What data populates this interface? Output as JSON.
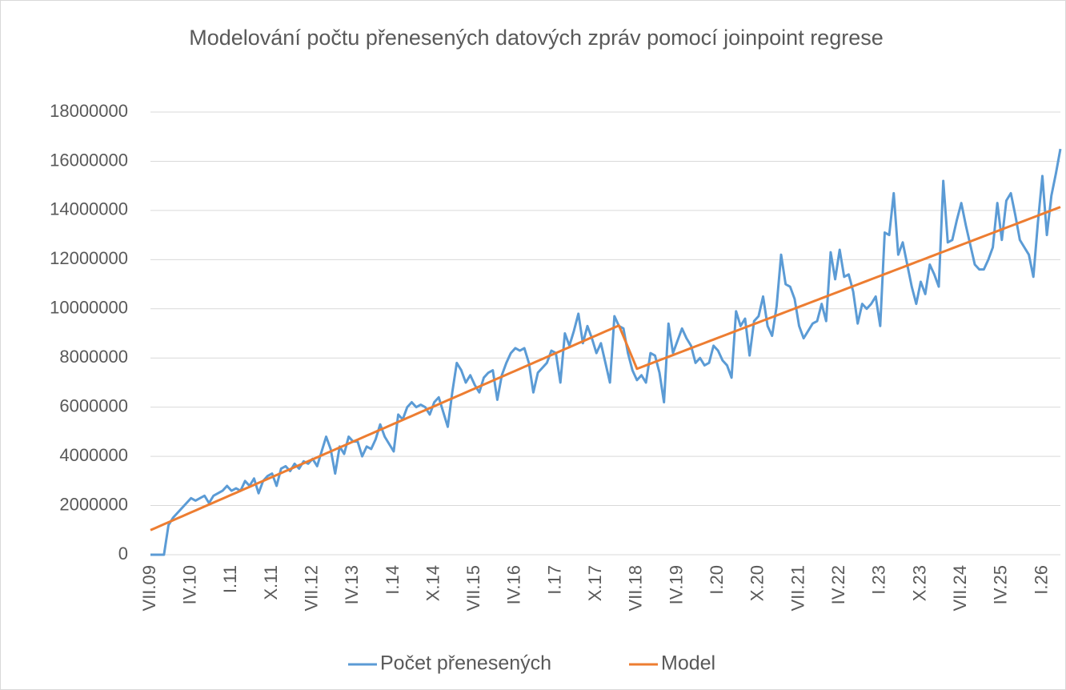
{
  "chart_data": {
    "type": "line",
    "title": "Modelování počtu přenesených datových zpráv pomocí joinpoint regrese",
    "categories": [
      "VII.09",
      null,
      null,
      null,
      null,
      null,
      null,
      null,
      null,
      "IV.10",
      null,
      null,
      null,
      null,
      null,
      null,
      null,
      null,
      "I.11",
      null,
      null,
      null,
      null,
      null,
      null,
      null,
      null,
      "X.11",
      null,
      null,
      null,
      null,
      null,
      null,
      null,
      null,
      "VII.12",
      null,
      null,
      null,
      null,
      null,
      null,
      null,
      null,
      "IV.13",
      null,
      null,
      null,
      null,
      null,
      null,
      null,
      null,
      "I.14",
      null,
      null,
      null,
      null,
      null,
      null,
      null,
      null,
      "X.14",
      null,
      null,
      null,
      null,
      null,
      null,
      null,
      null,
      "VII.15",
      null,
      null,
      null,
      null,
      null,
      null,
      null,
      null,
      "IV.16",
      null,
      null,
      null,
      null,
      null,
      null,
      null,
      null,
      "I.17",
      null,
      null,
      null,
      null,
      null,
      null,
      null,
      null,
      "X.17",
      null,
      null,
      null,
      null,
      null,
      null,
      null,
      null,
      "VII.18",
      null,
      null,
      null,
      null,
      null,
      null,
      null,
      null,
      "IV.19",
      null,
      null,
      null,
      null,
      null,
      null,
      null,
      null,
      "I.20",
      null,
      null,
      null,
      null,
      null,
      null,
      null,
      null,
      "X.20",
      null,
      null,
      null,
      null,
      null,
      null,
      null,
      null,
      "VII.21",
      null,
      null,
      null,
      null,
      null,
      null,
      null,
      null,
      "IV.22",
      null,
      null,
      null,
      null,
      null,
      null,
      null,
      null,
      "I.23",
      null,
      null,
      null,
      null,
      null,
      null,
      null,
      null,
      "X.23",
      null,
      null,
      null,
      null,
      null,
      null,
      null,
      null,
      "VII.24",
      null,
      null,
      null,
      null,
      null,
      null,
      null,
      null,
      "IV.25",
      null,
      null,
      null,
      null,
      null,
      null,
      null,
      null,
      "I.26",
      null,
      null,
      null,
      null
    ],
    "series": [
      {
        "name": "Počet přenesených",
        "color": "#5b9bd5",
        "values": [
          0,
          0,
          0,
          0,
          1200000,
          1500000,
          1700000,
          1900000,
          2100000,
          2300000,
          2200000,
          2300000,
          2400000,
          2100000,
          2400000,
          2500000,
          2600000,
          2800000,
          2600000,
          2700000,
          2600000,
          3000000,
          2800000,
          3100000,
          2500000,
          3000000,
          3200000,
          3300000,
          2800000,
          3500000,
          3600000,
          3400000,
          3700000,
          3500000,
          3800000,
          3700000,
          3900000,
          3600000,
          4200000,
          4800000,
          4300000,
          3300000,
          4400000,
          4100000,
          4800000,
          4600000,
          4600000,
          4000000,
          4400000,
          4300000,
          4700000,
          5300000,
          4800000,
          4500000,
          4200000,
          5700000,
          5500000,
          6000000,
          6200000,
          6000000,
          6100000,
          6000000,
          5700000,
          6200000,
          6400000,
          5800000,
          5200000,
          6600000,
          7800000,
          7500000,
          7000000,
          7300000,
          6900000,
          6600000,
          7200000,
          7400000,
          7500000,
          6300000,
          7300000,
          7800000,
          8200000,
          8400000,
          8300000,
          8400000,
          7800000,
          6600000,
          7400000,
          7600000,
          7800000,
          8300000,
          8200000,
          7000000,
          9000000,
          8500000,
          9100000,
          9800000,
          8600000,
          9300000,
          8800000,
          8200000,
          8600000,
          7800000,
          7000000,
          9700000,
          9300000,
          9200000,
          8200000,
          7500000,
          7100000,
          7300000,
          7000000,
          8200000,
          8100000,
          7400000,
          6200000,
          9400000,
          8200000,
          8700000,
          9200000,
          8800000,
          8500000,
          7800000,
          8000000,
          7700000,
          7800000,
          8500000,
          8300000,
          7900000,
          7700000,
          7200000,
          9900000,
          9300000,
          9600000,
          8100000,
          9500000,
          9700000,
          10500000,
          9300000,
          8900000,
          10100000,
          12200000,
          11000000,
          10900000,
          10400000,
          9300000,
          8800000,
          9100000,
          9400000,
          9500000,
          10200000,
          9500000,
          12300000,
          11200000,
          12400000,
          11300000,
          11400000,
          10700000,
          9400000,
          10200000,
          10000000,
          10200000,
          10500000,
          9300000,
          13100000,
          13000000,
          14700000,
          12200000,
          12700000,
          11800000,
          10900000,
          10200000,
          11100000,
          10600000,
          11800000,
          11400000,
          10900000,
          15200000,
          12700000,
          12800000,
          13600000,
          14300000,
          13400000,
          12600000,
          11800000,
          11600000,
          11600000,
          12000000,
          12500000,
          14300000,
          12800000,
          14400000,
          14700000,
          13800000,
          12800000,
          12500000,
          12200000,
          11300000,
          13500000,
          15400000,
          13000000,
          14600000,
          15500000,
          16500000
        ]
      },
      {
        "name": "Model",
        "color": "#ed7d31",
        "values": [
          1000000,
          1080000,
          1160000,
          1240000,
          1320000,
          1400000,
          1480000,
          1560000,
          1640000,
          1720000,
          1800000,
          1880000,
          1960000,
          2040000,
          2120000,
          2200000,
          2280000,
          2360000,
          2440000,
          2520000,
          2600000,
          2680000,
          2760000,
          2840000,
          2920000,
          3000000,
          3080000,
          3160000,
          3240000,
          3320000,
          3400000,
          3480000,
          3560000,
          3640000,
          3720000,
          3800000,
          3880000,
          3960000,
          4040000,
          4120000,
          4200000,
          4280000,
          4360000,
          4440000,
          4520000,
          4600000,
          4680000,
          4760000,
          4840000,
          4920000,
          5000000,
          5080000,
          5160000,
          5240000,
          5320000,
          5400000,
          5480000,
          5560000,
          5640000,
          5720000,
          5800000,
          5880000,
          5960000,
          6040000,
          6120000,
          6200000,
          6280000,
          6360000,
          6440000,
          6520000,
          6600000,
          6680000,
          6760000,
          6840000,
          6920000,
          7000000,
          7080000,
          7160000,
          7240000,
          7320000,
          7400000,
          7480000,
          7560000,
          7640000,
          7720000,
          7800000,
          7880000,
          7960000,
          8040000,
          8120000,
          8200000,
          8280000,
          8360000,
          8440000,
          8520000,
          8600000,
          8680000,
          8760000,
          8840000,
          8920000,
          9000000,
          9080000,
          9160000,
          9240000,
          9320000,
          8880000,
          8440000,
          8000000,
          7560000,
          7630000,
          7700000,
          7770000,
          7840000,
          7910000,
          7980000,
          8050000,
          8120000,
          8190000,
          8260000,
          8330000,
          8400000,
          8470000,
          8540000,
          8610000,
          8680000,
          8750000,
          8820000,
          8890000,
          8960000,
          9030000,
          9100000,
          9170000,
          9240000,
          9310000,
          9380000,
          9450000,
          9520000,
          9590000,
          9660000,
          9730000,
          9800000,
          9870000,
          9940000,
          10010000,
          10080000,
          10150000,
          10220000,
          10290000,
          10360000,
          10430000,
          10500000,
          10570000,
          10640000,
          10710000,
          10780000,
          10850000,
          10920000,
          10990000,
          11060000,
          11130000,
          11200000,
          11270000,
          11340000,
          11410000,
          11480000,
          11550000,
          11620000,
          11690000,
          11760000,
          11830000,
          11900000,
          11970000,
          12040000,
          12110000,
          12180000,
          12250000,
          12320000,
          12390000,
          12460000,
          12530000,
          12600000,
          12670000,
          12740000,
          12810000,
          12880000,
          12950000,
          13020000,
          13090000,
          13160000,
          13230000,
          13300000,
          13370000,
          13440000,
          13510000,
          13580000,
          13650000,
          13720000,
          13790000,
          13860000,
          13930000,
          14000000,
          14070000,
          14140000
        ]
      }
    ],
    "ylim": [
      0,
      18000000
    ],
    "yticks": [
      0,
      2000000,
      4000000,
      6000000,
      8000000,
      10000000,
      12000000,
      14000000,
      16000000,
      18000000
    ],
    "grid": true,
    "legend": "bottom"
  }
}
